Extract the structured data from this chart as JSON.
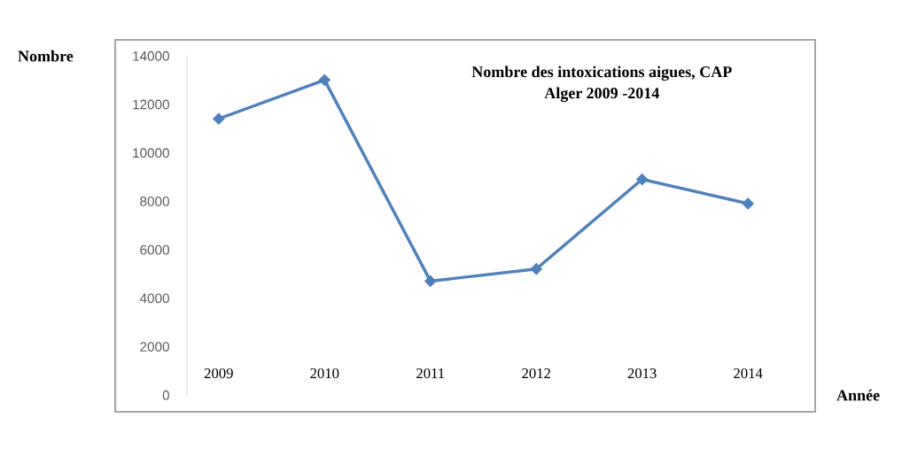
{
  "chart_data": {
    "type": "line",
    "title": "Nombre des intoxications aigues, CAP\nAlger 2009 -2014",
    "xlabel": "Année",
    "ylabel": "Nombre",
    "categories": [
      "2009",
      "2010",
      "2011",
      "2012",
      "2013",
      "2014"
    ],
    "series": [
      {
        "color": "#4f81bd",
        "values": [
          11400,
          13000,
          4700,
          5200,
          8900,
          7900
        ]
      }
    ],
    "ylim": [
      0,
      14000
    ],
    "yticks": [
      0,
      2000,
      4000,
      6000,
      8000,
      10000,
      12000,
      14000
    ],
    "marker": "diamond",
    "line_style": "solid",
    "grid": false,
    "legend": false
  }
}
